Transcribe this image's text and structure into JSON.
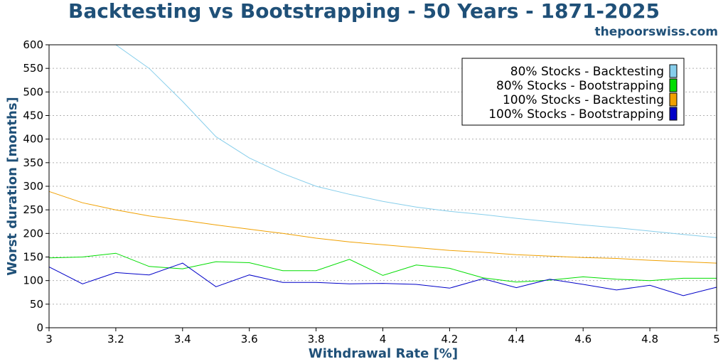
{
  "header": {
    "title": "Backtesting vs Bootstrapping - 50 Years - 1871-2025",
    "site": "thepoorswiss.com"
  },
  "chart_data": {
    "type": "line",
    "title": "Backtesting vs Bootstrapping - 50 Years - 1871-2025",
    "xlabel": "Withdrawal Rate [%]",
    "ylabel": "Worst duration [months]",
    "xlim": [
      3,
      5
    ],
    "ylim": [
      0,
      600
    ],
    "xticks": [
      3,
      3.2,
      3.4,
      3.6,
      3.8,
      4,
      4.2,
      4.4,
      4.6,
      4.8,
      5
    ],
    "xtick_labels": [
      "3",
      "3.2",
      "3.4",
      "3.6",
      "3.8",
      "4",
      "4.2",
      "4.4",
      "4.6",
      "4.8",
      "5"
    ],
    "yticks": [
      0,
      50,
      100,
      150,
      200,
      250,
      300,
      350,
      400,
      450,
      500,
      550,
      600
    ],
    "ytick_labels": [
      "0",
      "50",
      "100",
      "150",
      "200",
      "250",
      "300",
      "350",
      "400",
      "450",
      "500",
      "550",
      "600"
    ],
    "grid": "horizontal dotted",
    "legend_position": "top-right",
    "x": [
      3,
      3.1,
      3.2,
      3.3,
      3.4,
      3.5,
      3.6,
      3.7,
      3.8,
      3.9,
      4,
      4.1,
      4.2,
      4.3,
      4.4,
      4.5,
      4.6,
      4.7,
      4.8,
      4.9,
      5
    ],
    "series": [
      {
        "name": "80% Stocks - Backtesting",
        "color": "#87ceeb",
        "values": [
          600,
          600,
          600,
          550,
          480,
          405,
          360,
          327,
          300,
          283,
          268,
          256,
          247,
          240,
          232,
          225,
          218,
          212,
          205,
          198,
          191
        ]
      },
      {
        "name": "80% Stocks - Bootstrapping",
        "color": "#00dd00",
        "values": [
          148,
          150,
          158,
          130,
          125,
          140,
          138,
          121,
          121,
          145,
          111,
          133,
          126,
          106,
          97,
          101,
          108,
          103,
          100,
          105,
          105
        ]
      },
      {
        "name": "100% Stocks - Backtesting",
        "color": "#f0a000",
        "values": [
          289,
          265,
          250,
          237,
          228,
          218,
          209,
          200,
          190,
          182,
          176,
          170,
          164,
          160,
          155,
          152,
          149,
          147,
          143,
          140,
          137
        ]
      },
      {
        "name": "100% Stocks - Bootstrapping",
        "color": "#0000c8",
        "values": [
          129,
          93,
          117,
          112,
          137,
          87,
          112,
          96,
          96,
          93,
          94,
          92,
          84,
          104,
          85,
          103,
          92,
          80,
          90,
          68,
          86
        ]
      }
    ]
  }
}
